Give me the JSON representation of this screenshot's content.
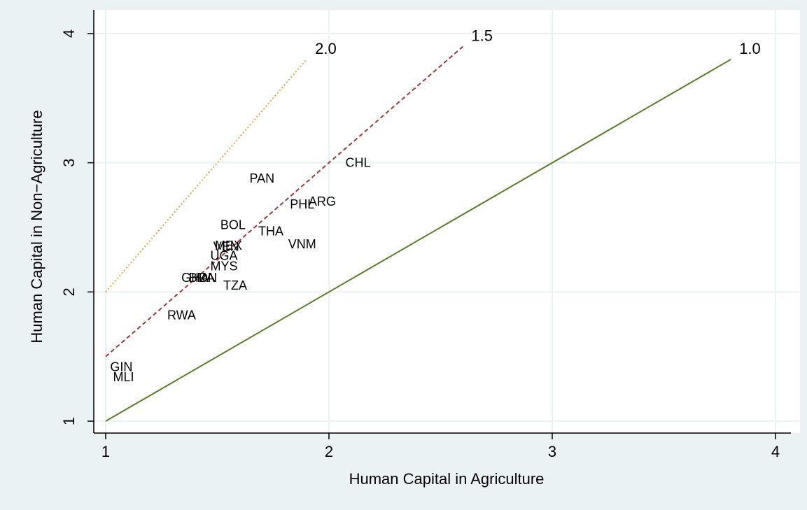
{
  "chart_data": {
    "type": "scatter",
    "title": "",
    "xlabel": "Human Capital in Agriculture",
    "ylabel": "Human Capital in Non−Agriculture",
    "xlim": [
      1,
      4
    ],
    "ylim": [
      1,
      4
    ],
    "xticks": [
      1,
      2,
      3,
      4
    ],
    "yticks": [
      1,
      2,
      3,
      4
    ],
    "grid": true,
    "legend": "none",
    "colors": {
      "outer_background": "#eaf2f3",
      "plot_background": "#ffffff",
      "grid": "#eaf2f3",
      "ratio_1_0": "#5a7d2a",
      "ratio_1_5": "#9b3b3b",
      "ratio_2_0": "#e8a33a",
      "text": "#000000"
    },
    "reference_lines": [
      {
        "label": "1.0",
        "ratio": 1.0,
        "x_range": [
          1,
          3.8
        ],
        "style": "solid"
      },
      {
        "label": "1.5",
        "ratio": 1.5,
        "x_range": [
          1,
          2.6
        ],
        "style": "dashed"
      },
      {
        "label": "2.0",
        "ratio": 2.0,
        "x_range": [
          1,
          1.9
        ],
        "style": "dotted"
      }
    ],
    "points": [
      {
        "label": "CHL",
        "x": 2.13,
        "y": 3.0
      },
      {
        "label": "PAN",
        "x": 1.7,
        "y": 2.88
      },
      {
        "label": "ARG",
        "x": 1.97,
        "y": 2.7
      },
      {
        "label": "PHL",
        "x": 1.88,
        "y": 2.68
      },
      {
        "label": "BOL",
        "x": 1.57,
        "y": 2.52
      },
      {
        "label": "THA",
        "x": 1.74,
        "y": 2.47
      },
      {
        "label": "VNM",
        "x": 1.88,
        "y": 2.37
      },
      {
        "label": "MEX",
        "x": 1.55,
        "y": 2.36
      },
      {
        "label": "VEN",
        "x": 1.54,
        "y": 2.35
      },
      {
        "label": "UGA",
        "x": 1.53,
        "y": 2.28
      },
      {
        "label": "MYS",
        "x": 1.53,
        "y": 2.2
      },
      {
        "label": "GHA",
        "x": 1.4,
        "y": 2.11
      },
      {
        "label": "BRA",
        "x": 1.43,
        "y": 2.11
      },
      {
        "label": "IDN",
        "x": 1.45,
        "y": 2.11
      },
      {
        "label": "TZA",
        "x": 1.58,
        "y": 2.05
      },
      {
        "label": "RWA",
        "x": 1.34,
        "y": 1.82
      },
      {
        "label": "GIN",
        "x": 1.07,
        "y": 1.42
      },
      {
        "label": "MLI",
        "x": 1.08,
        "y": 1.34
      }
    ]
  }
}
